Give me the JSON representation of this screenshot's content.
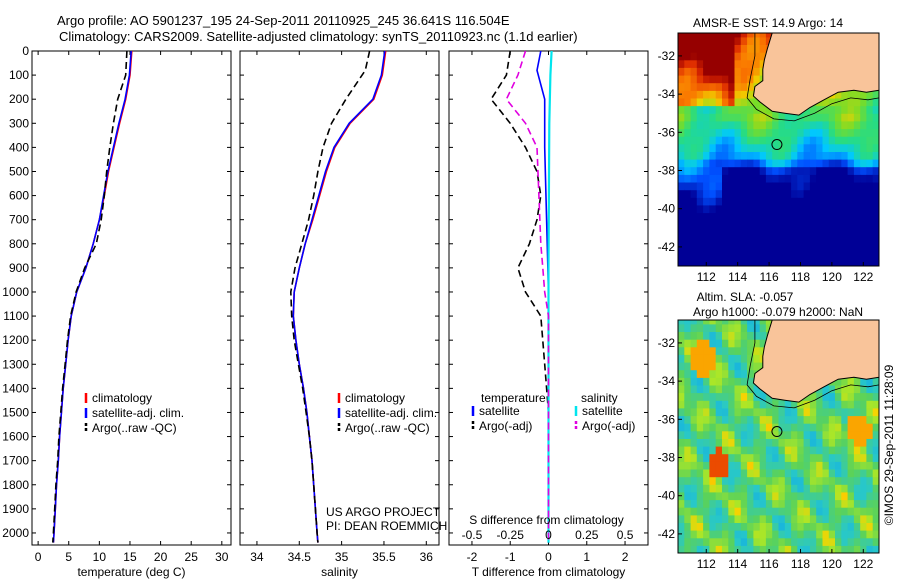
{
  "header": {
    "title_line1": "Argo profile: AO 5901237_195 24-Sep-2011 20110925_245 36.641S 116.504E",
    "title_line2": "Climatology: CARS2009. Satellite-adjusted climatology: synTS_20110923.nc (1.1d earlier)"
  },
  "colors": {
    "climatology": "#ff0000",
    "satellite": "#0000ff",
    "argo": "#000000",
    "sal_satellite": "#00e5ee",
    "sal_argo": "#e000e0",
    "land": "#f9c49a"
  },
  "chart_data": [
    {
      "type": "line",
      "name": "temperature-profile",
      "xlabel": "temperature (deg C)",
      "xlim": [
        -1,
        31.5
      ],
      "ylim": [
        0,
        2050
      ],
      "xticks": [
        0,
        5,
        10,
        15,
        20,
        25,
        30
      ],
      "yticks": [
        0,
        100,
        200,
        300,
        400,
        500,
        600,
        700,
        800,
        900,
        1000,
        1100,
        1200,
        1300,
        1400,
        1500,
        1600,
        1700,
        1800,
        1900,
        2000
      ],
      "legend_position": "lower-center",
      "series": [
        {
          "name": "climatology",
          "style": "solid",
          "color": "#ff0000",
          "points": [
            [
              15.3,
              0
            ],
            [
              15.0,
              100
            ],
            [
              14.3,
              200
            ],
            [
              13.3,
              300
            ],
            [
              12.4,
              400
            ],
            [
              11.5,
              500
            ],
            [
              10.8,
              600
            ],
            [
              10.0,
              700
            ],
            [
              9.0,
              800
            ],
            [
              7.8,
              900
            ],
            [
              6.3,
              1000
            ],
            [
              5.4,
              1100
            ],
            [
              4.9,
              1200
            ],
            [
              4.5,
              1300
            ],
            [
              4.1,
              1400
            ],
            [
              3.8,
              1500
            ],
            [
              3.5,
              1600
            ],
            [
              3.3,
              1700
            ],
            [
              3.0,
              1800
            ],
            [
              2.8,
              1900
            ],
            [
              2.6,
              2000
            ],
            [
              2.5,
              2040
            ]
          ]
        },
        {
          "name": "satellite-adj. clim.",
          "style": "solid",
          "color": "#0000ff",
          "points": [
            [
              15.2,
              0
            ],
            [
              14.9,
              100
            ],
            [
              14.2,
              200
            ],
            [
              13.2,
              300
            ],
            [
              12.3,
              400
            ],
            [
              11.4,
              500
            ],
            [
              10.7,
              600
            ],
            [
              10.0,
              700
            ],
            [
              9.0,
              800
            ],
            [
              7.8,
              900
            ],
            [
              6.3,
              1000
            ],
            [
              5.4,
              1100
            ],
            [
              4.9,
              1200
            ],
            [
              4.5,
              1300
            ],
            [
              4.1,
              1400
            ],
            [
              3.8,
              1500
            ],
            [
              3.5,
              1600
            ],
            [
              3.3,
              1700
            ],
            [
              3.0,
              1800
            ],
            [
              2.8,
              1900
            ],
            [
              2.6,
              2000
            ],
            [
              2.5,
              2040
            ]
          ]
        },
        {
          "name": "Argo(..raw -QC)",
          "style": "dashed",
          "color": "#000000",
          "points": [
            [
              14.5,
              0
            ],
            [
              14.3,
              100
            ],
            [
              13.0,
              200
            ],
            [
              12.3,
              300
            ],
            [
              11.7,
              400
            ],
            [
              11.2,
              500
            ],
            [
              10.8,
              600
            ],
            [
              10.3,
              700
            ],
            [
              9.5,
              800
            ],
            [
              7.6,
              900
            ],
            [
              6.2,
              1000
            ],
            [
              5.3,
              1100
            ],
            [
              4.8,
              1200
            ],
            [
              4.4,
              1300
            ],
            [
              4.0,
              1400
            ],
            [
              3.7,
              1500
            ],
            [
              3.4,
              1600
            ],
            [
              3.2,
              1700
            ],
            [
              2.9,
              1800
            ],
            [
              2.7,
              1900
            ],
            [
              2.5,
              2000
            ],
            [
              2.4,
              2040
            ]
          ]
        }
      ]
    },
    {
      "type": "line",
      "name": "salinity-profile",
      "xlabel": "salinity",
      "xlim": [
        33.8,
        36.15
      ],
      "ylim": [
        0,
        2050
      ],
      "xticks": [
        34,
        34.5,
        35,
        35.5,
        36
      ],
      "legend_position": "lower-center",
      "series": [
        {
          "name": "climatology",
          "style": "solid",
          "color": "#ff0000",
          "points": [
            [
              35.52,
              0
            ],
            [
              35.48,
              100
            ],
            [
              35.38,
              200
            ],
            [
              35.1,
              300
            ],
            [
              34.92,
              400
            ],
            [
              34.82,
              500
            ],
            [
              34.74,
              600
            ],
            [
              34.66,
              700
            ],
            [
              34.57,
              800
            ],
            [
              34.5,
              900
            ],
            [
              34.44,
              1000
            ],
            [
              34.43,
              1100
            ],
            [
              34.46,
              1200
            ],
            [
              34.5,
              1300
            ],
            [
              34.55,
              1400
            ],
            [
              34.59,
              1500
            ],
            [
              34.62,
              1600
            ],
            [
              34.65,
              1700
            ],
            [
              34.67,
              1800
            ],
            [
              34.69,
              1900
            ],
            [
              34.71,
              2000
            ],
            [
              34.72,
              2040
            ]
          ]
        },
        {
          "name": "satellite-adj. clim.",
          "style": "solid",
          "color": "#0000ff",
          "points": [
            [
              35.51,
              0
            ],
            [
              35.47,
              100
            ],
            [
              35.37,
              200
            ],
            [
              35.09,
              300
            ],
            [
              34.91,
              400
            ],
            [
              34.81,
              500
            ],
            [
              34.73,
              600
            ],
            [
              34.65,
              700
            ],
            [
              34.57,
              800
            ],
            [
              34.5,
              900
            ],
            [
              34.44,
              1000
            ],
            [
              34.43,
              1100
            ],
            [
              34.46,
              1200
            ],
            [
              34.5,
              1300
            ],
            [
              34.55,
              1400
            ],
            [
              34.59,
              1500
            ],
            [
              34.62,
              1600
            ],
            [
              34.65,
              1700
            ],
            [
              34.67,
              1800
            ],
            [
              34.69,
              1900
            ],
            [
              34.71,
              2000
            ],
            [
              34.72,
              2040
            ]
          ]
        },
        {
          "name": "Argo(..raw -QC)",
          "style": "dashed",
          "color": "#000000",
          "points": [
            [
              35.33,
              0
            ],
            [
              35.28,
              80
            ],
            [
              35.05,
              200
            ],
            [
              34.88,
              300
            ],
            [
              34.78,
              400
            ],
            [
              34.72,
              500
            ],
            [
              34.67,
              600
            ],
            [
              34.61,
              700
            ],
            [
              34.53,
              800
            ],
            [
              34.45,
              900
            ],
            [
              34.4,
              1000
            ],
            [
              34.41,
              1100
            ],
            [
              34.44,
              1200
            ],
            [
              34.49,
              1300
            ],
            [
              34.54,
              1400
            ],
            [
              34.58,
              1500
            ],
            [
              34.62,
              1600
            ],
            [
              34.65,
              1700
            ],
            [
              34.67,
              1800
            ],
            [
              34.69,
              1900
            ],
            [
              34.71,
              2000
            ],
            [
              34.72,
              2040
            ]
          ]
        }
      ]
    },
    {
      "type": "line",
      "name": "difference-profile",
      "xlabel": "T difference from climatology",
      "xlabel2": "S difference from climatology",
      "xlim": [
        -2.6,
        2.6
      ],
      "ylim": [
        0,
        2050
      ],
      "xticks": [
        -2,
        -1,
        0,
        1,
        2
      ],
      "xticks2": [
        "-0.5",
        "-0.25",
        "0",
        "0.25",
        "0.5"
      ],
      "legend": {
        "temperature": "temperature",
        "salinity": "salinity"
      },
      "series": [
        {
          "name": "satellite",
          "group": "temperature",
          "style": "solid",
          "color": "#0000ff",
          "points": [
            [
              -0.2,
              0
            ],
            [
              -0.3,
              80
            ],
            [
              -0.1,
              200
            ],
            [
              -0.1,
              400
            ],
            [
              -0.05,
              700
            ],
            [
              0,
              1000
            ],
            [
              0,
              2040
            ]
          ]
        },
        {
          "name": "Argo(-adj)",
          "group": "temperature",
          "style": "dashed",
          "color": "#000000",
          "points": [
            [
              -1.0,
              0
            ],
            [
              -1.1,
              100
            ],
            [
              -1.5,
              200
            ],
            [
              -1.0,
              300
            ],
            [
              -0.6,
              400
            ],
            [
              -0.3,
              500
            ],
            [
              -0.2,
              600
            ],
            [
              -0.3,
              700
            ],
            [
              -0.5,
              800
            ],
            [
              -0.8,
              900
            ],
            [
              -0.6,
              1000
            ],
            [
              -0.2,
              1100
            ],
            [
              -0.1,
              1300
            ],
            [
              0,
              1500
            ],
            [
              0,
              2040
            ]
          ]
        },
        {
          "name": "satellite",
          "group": "salinity",
          "style": "solid",
          "color": "#00e5ee",
          "points": [
            [
              0.08,
              0
            ],
            [
              0.05,
              100
            ],
            [
              0.02,
              300
            ],
            [
              0.01,
              600
            ],
            [
              0,
              900
            ],
            [
              0,
              2040
            ]
          ]
        },
        {
          "name": "Argo(-adj)",
          "group": "salinity",
          "style": "dashed",
          "color": "#e000e0",
          "points": [
            [
              -0.6,
              0
            ],
            [
              -0.8,
              100
            ],
            [
              -1.1,
              200
            ],
            [
              -0.6,
              300
            ],
            [
              -0.3,
              400
            ],
            [
              -0.25,
              600
            ],
            [
              -0.2,
              800
            ],
            [
              -0.15,
              900
            ],
            [
              -0.1,
              1000
            ],
            [
              0,
              1100
            ],
            [
              0,
              2040
            ]
          ]
        }
      ]
    },
    {
      "type": "heatmap",
      "name": "sst-map",
      "title": "AMSR-E SST: 14.9 Argo: 14",
      "xticks": [
        112,
        114,
        116,
        118,
        120,
        122
      ],
      "yticks": [
        -32,
        -34,
        -36,
        -38,
        -40,
        -42
      ],
      "xlim": [
        110.2,
        123.0
      ],
      "ylim": [
        -43.0,
        -30.8
      ],
      "argo_position": [
        116.5,
        -36.64
      ]
    },
    {
      "type": "heatmap",
      "name": "sla-map",
      "title_line1": "Altim. SLA: -0.057",
      "title_line2": "Argo h1000: -0.079 h2000: NaN",
      "xticks": [
        112,
        114,
        116,
        118,
        120,
        122
      ],
      "yticks": [
        -32,
        -34,
        -36,
        -38,
        -40,
        -42
      ],
      "xlim": [
        110.2,
        123.0
      ],
      "ylim": [
        -43.0,
        -30.8
      ],
      "argo_position": [
        116.5,
        -36.64
      ]
    }
  ],
  "annotations": {
    "project_line1": "US ARGO PROJECT",
    "project_line2": "PI: DEAN ROEMMICH",
    "footer_stamp": "©IMOS 29-Sep-2011 11:28:09"
  }
}
